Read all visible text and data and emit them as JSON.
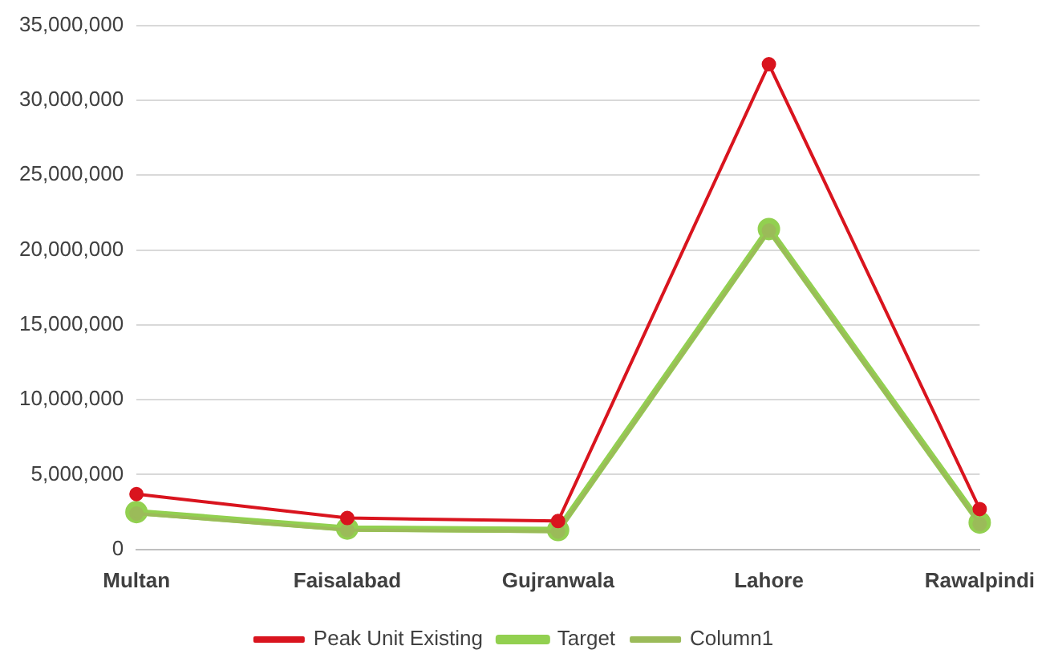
{
  "chart_data": {
    "type": "line",
    "categories": [
      "Multan",
      "Faisalabad",
      "Gujranwala",
      "Lahore",
      "Rawalpindi"
    ],
    "series": [
      {
        "name": "Peak Unit Existing",
        "color": "#d9141e",
        "values": [
          3700000,
          2100000,
          1900000,
          32400000,
          2700000
        ]
      },
      {
        "name": "Target",
        "color": "#92d050",
        "values": [
          2500000,
          1400000,
          1300000,
          21400000,
          1800000
        ]
      },
      {
        "name": "Column1",
        "color": "#9bbb59",
        "values": [
          2400000,
          1300000,
          1200000,
          21300000,
          1700000
        ]
      }
    ],
    "ylim": [
      0,
      35000000
    ],
    "yticks": [
      0,
      {
        "value": 5000000,
        "label": "5,000,000"
      },
      {
        "value": 10000000,
        "label": "10,000,000"
      },
      {
        "value": 15000000,
        "label": "15,000,000"
      },
      {
        "value": 20000000,
        "label": "20,000,000"
      },
      {
        "value": 25000000,
        "label": "25,000,000"
      },
      {
        "value": 30000000,
        "label": "30,000,000"
      },
      {
        "value": 35000000,
        "label": "35,000,000"
      }
    ],
    "grid": "y",
    "legend": "bottom",
    "marker": "circle",
    "line_style": "solid"
  }
}
